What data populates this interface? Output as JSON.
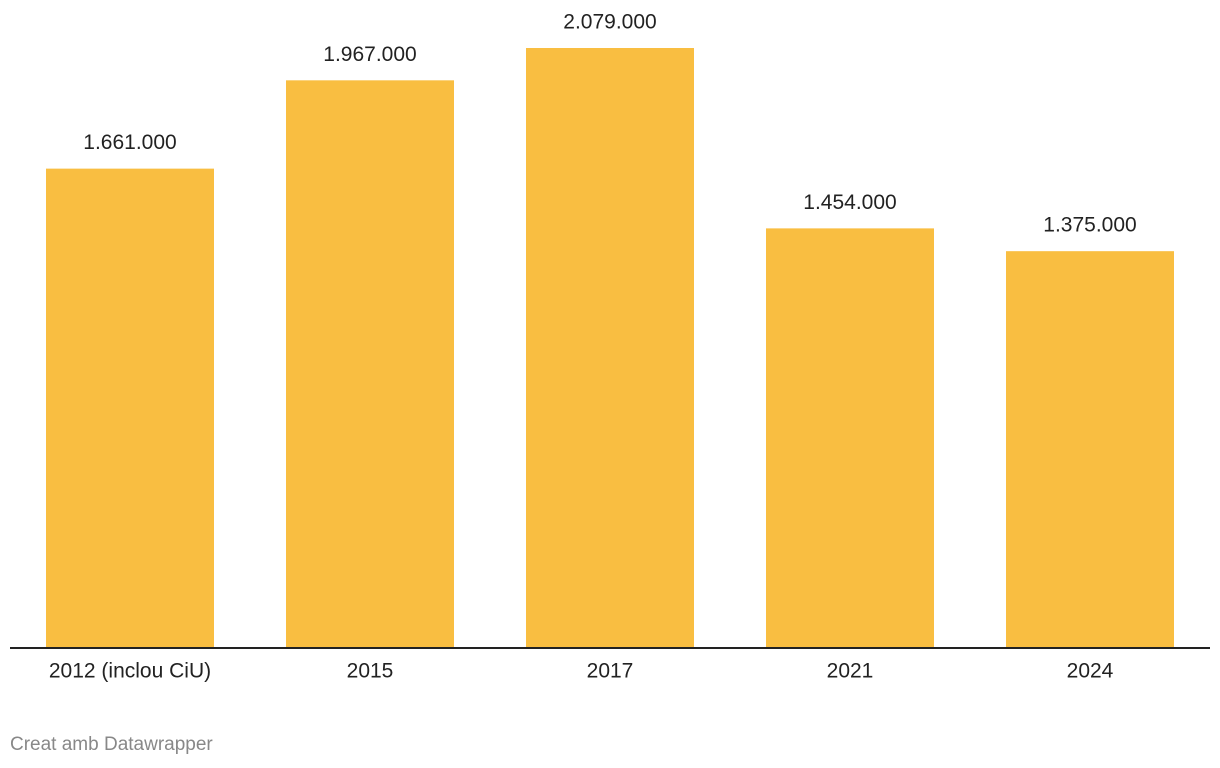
{
  "chart_data": {
    "type": "bar",
    "categories": [
      "2012 (inclou CiU)",
      "2015",
      "2017",
      "2021",
      "2024"
    ],
    "values": [
      1661000,
      1967000,
      2079000,
      1454000,
      1375000
    ],
    "value_labels": [
      "1.661.000",
      "1.967.000",
      "2.079.000",
      "1.454.000",
      "1.375.000"
    ],
    "color": "#f9be41",
    "credit": "Creat amb Datawrapper"
  }
}
